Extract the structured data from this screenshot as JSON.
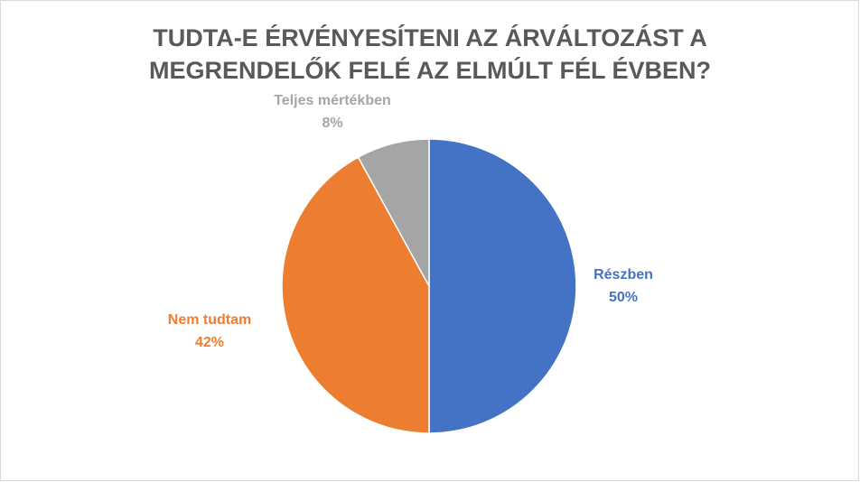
{
  "chart_data": {
    "type": "pie",
    "title": [
      "TUDTA-E ÉRVÉNYESÍTENI AZ ÁRVÁLTOZÁST A",
      "MEGRENDELŐK FELÉ AZ ELMÚLT FÉL ÉVBEN?"
    ],
    "categories": [
      "Részben",
      "Nem tudtam",
      "Teljes mértékben"
    ],
    "values": [
      50,
      42,
      8
    ],
    "value_labels": [
      "50%",
      "42%",
      "8%"
    ],
    "colors": [
      "#4472c4",
      "#ed7d31",
      "#a5a5a5"
    ]
  }
}
